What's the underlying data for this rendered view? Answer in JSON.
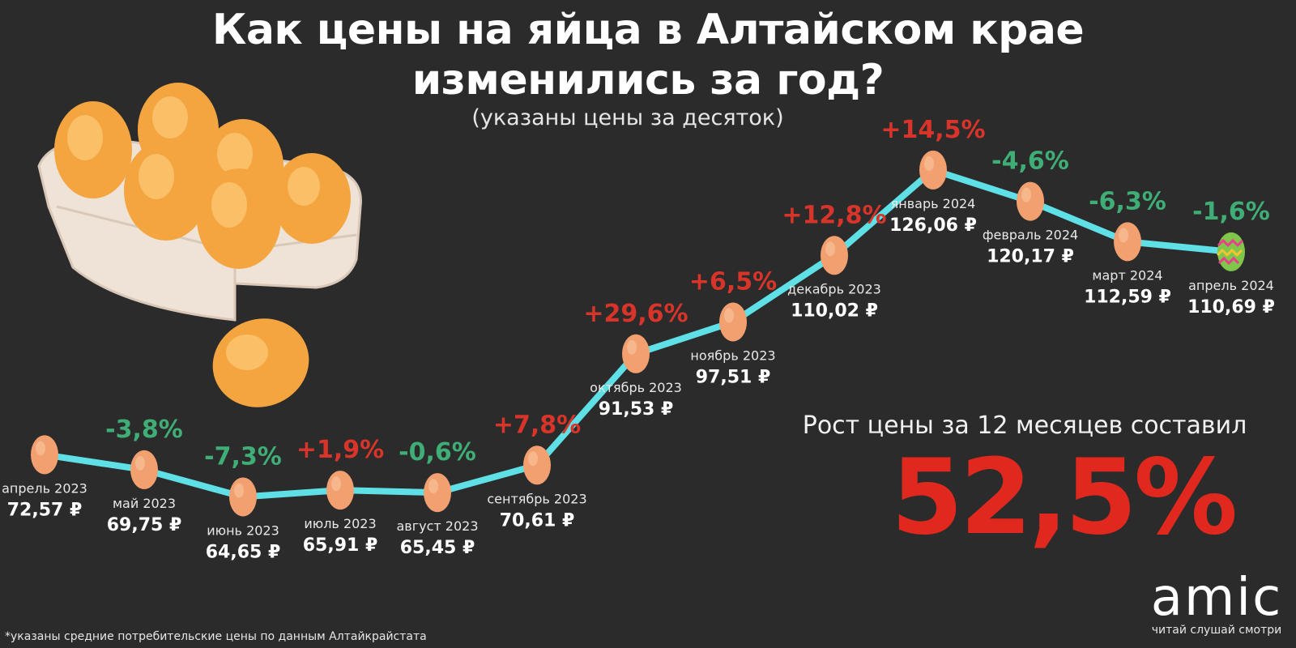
{
  "title_line1": "Как цены на яйца в Алтайском крае",
  "title_line2": "изменились за год?",
  "subtitle": "(указаны цены за десяток)",
  "summary": {
    "label": "Рост цены за 12 месяцев составил",
    "value": "52,5%"
  },
  "footnote": "*указаны средние потребительские цены по данным Алтайкрайстата",
  "logo": {
    "text": "amic",
    "tagline": "читай слушай смотри"
  },
  "colors": {
    "line": "#5ee0e6",
    "increase": "#d8342a",
    "decrease": "#3fae76",
    "egg": "#f2a070",
    "background": "#2b2b2b",
    "summary": "#e0281e"
  },
  "chart_data": {
    "type": "line",
    "x": [
      "апрель 2023",
      "май 2023",
      "июнь 2023",
      "июль 2023",
      "август 2023",
      "сентябрь 2023",
      "октябрь 2023",
      "ноябрь 2023",
      "декабрь 2023",
      "январь 2024",
      "февраль 2024",
      "март 2024",
      "апрель 2024"
    ],
    "values": [
      72.57,
      69.75,
      64.65,
      65.91,
      65.45,
      70.61,
      91.53,
      97.51,
      110.02,
      126.06,
      120.17,
      112.59,
      110.69
    ],
    "value_labels": [
      "72,57 ₽",
      "69,75 ₽",
      "64,65 ₽",
      "65,91 ₽",
      "65,45 ₽",
      "70,61 ₽",
      "91,53 ₽",
      "97,51 ₽",
      "110,02 ₽",
      "126,06 ₽",
      "120,17 ₽",
      "112,59 ₽",
      "110,69 ₽"
    ],
    "changes": [
      "",
      "-3,8%",
      "-7,3%",
      "+1,9%",
      "-0,6%",
      "+7,8%",
      "+29,6%",
      "+6,5%",
      "+12,8%",
      "+14,5%",
      "-4,6%",
      "-6,3%",
      "-1,6%"
    ],
    "unit": "₽",
    "grid": false,
    "legend": "none",
    "marker": "egg",
    "last_marker": "easter-egg"
  }
}
